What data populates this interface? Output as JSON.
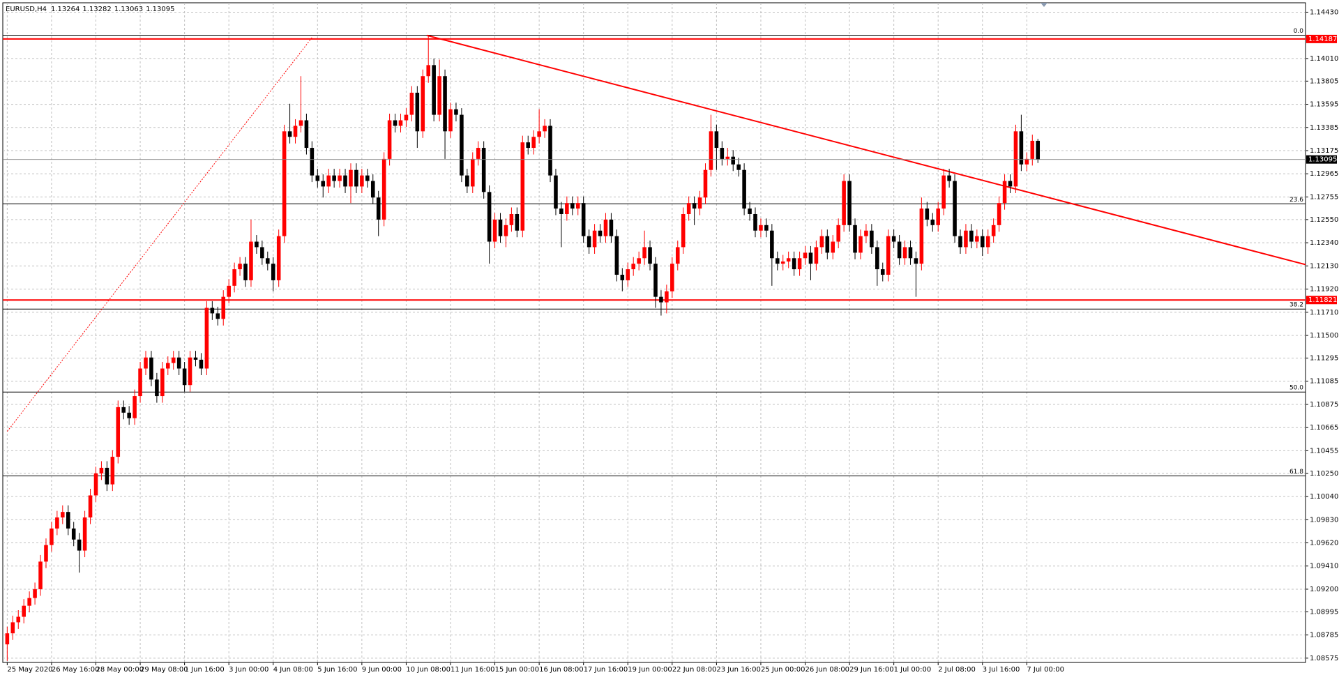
{
  "chart_data": {
    "type": "candlestick",
    "symbol": "EURUSD,H4",
    "up_color": "#ff0000",
    "down_color": "#000000",
    "level_color": "#ff0000",
    "grid": true,
    "ylim": [
      1.08536,
      1.14515
    ],
    "yticks": [
      {
        "value": 1.1443,
        "label": "1.14430"
      },
      {
        "value": 1.1401,
        "label": "1.14010"
      },
      1.13805,
      1.13595,
      1.13385,
      1.13175,
      1.12965,
      1.12755,
      {
        "value": 1.1255,
        "label": "1.12550"
      },
      {
        "value": 1.1234,
        "label": "1.12340"
      },
      {
        "value": 1.1213,
        "label": "1.12130"
      },
      {
        "value": 1.1192,
        "label": "1.11920"
      },
      {
        "value": 1.1171,
        "label": "1.11710"
      },
      {
        "value": 1.115,
        "label": "1.11500"
      },
      1.11295,
      1.11085,
      1.10875,
      1.10665,
      1.10455,
      {
        "value": 1.1025,
        "label": "1.10250"
      },
      {
        "value": 1.1004,
        "label": "1.10040"
      },
      {
        "value": 1.0983,
        "label": "1.09830"
      },
      {
        "value": 1.0962,
        "label": "1.09620"
      },
      {
        "value": 1.0941,
        "label": "1.09410"
      },
      {
        "value": 1.092,
        "label": "1.09200"
      },
      1.08995,
      1.08785,
      1.08575
    ],
    "xticks": [
      {
        "value": 0,
        "label": "25 May 2020"
      },
      {
        "value": 8,
        "label": "26 May 16:00"
      },
      {
        "value": 16,
        "label": "28 May 00:00"
      },
      {
        "value": 24,
        "label": "29 May 08:00"
      },
      {
        "value": 32,
        "label": "1 Jun 16:00"
      },
      {
        "value": 40,
        "label": "3 Jun 00:00"
      },
      {
        "value": 48,
        "label": "4 Jun 08:00"
      },
      {
        "value": 56,
        "label": "5 Jun 16:00"
      },
      {
        "value": 64,
        "label": "9 Jun 00:00"
      },
      {
        "value": 72,
        "label": "10 Jun 08:00"
      },
      {
        "value": 80,
        "label": "11 Jun 16:00"
      },
      {
        "value": 88,
        "label": "15 Jun 00:00"
      },
      {
        "value": 96,
        "label": "16 Jun 08:00"
      },
      {
        "value": 104,
        "label": "17 Jun 16:00"
      },
      {
        "value": 112,
        "label": "19 Jun 00:00"
      },
      {
        "value": 120,
        "label": "22 Jun 08:00"
      },
      {
        "value": 128,
        "label": "23 Jun 16:00"
      },
      {
        "value": 136,
        "label": "25 Jun 00:00"
      },
      {
        "value": 144,
        "label": "26 Jun 08:00"
      },
      {
        "value": 152,
        "label": "29 Jun 16:00"
      },
      {
        "value": 160,
        "label": "1 Jul 00:00"
      },
      {
        "value": 168,
        "label": "2 Jul 08:00"
      },
      {
        "value": 176,
        "label": "3 Jul 16:00"
      },
      {
        "value": 184,
        "label": "7 Jul 00:00"
      }
    ],
    "xlim": [
      -0.8,
      234.3
    ],
    "open": [
      1.087,
      1.088,
      1.089,
      1.0895,
      1.0905,
      1.0912,
      1.092,
      1.0945,
      1.096,
      1.0975,
      1.0985,
      1.099,
      1.0975,
      1.0965,
      1.0955,
      1.0985,
      1.1005,
      1.1025,
      1.103,
      1.1015,
      1.104,
      1.1085,
      1.108,
      1.1075,
      1.1095,
      1.112,
      1.113,
      1.111,
      1.1095,
      1.112,
      1.1125,
      1.113,
      1.112,
      1.1105,
      1.113,
      1.1128,
      1.112,
      1.1175,
      1.117,
      1.1165,
      1.1185,
      1.1195,
      1.121,
      1.1215,
      1.12,
      1.1235,
      1.123,
      1.122,
      1.1215,
      1.12,
      1.124,
      1.1335,
      1.133,
      1.134,
      1.1345,
      1.132,
      1.1295,
      1.129,
      1.1285,
      1.1295,
      1.129,
      1.1295,
      1.1285,
      1.13,
      1.1285,
      1.1295,
      1.129,
      1.1275,
      1.1255,
      1.131,
      1.1345,
      1.134,
      1.1345,
      1.135,
      1.137,
      1.1335,
      1.1385,
      1.1395,
      1.135,
      1.1385,
      1.1335,
      1.1355,
      1.135,
      1.1295,
      1.1285,
      1.131,
      1.132,
      1.128,
      1.1235,
      1.1255,
      1.124,
      1.125,
      1.126,
      1.1245,
      1.1325,
      1.132,
      1.133,
      1.1335,
      1.134,
      1.1295,
      1.1265,
      1.126,
      1.127,
      1.1265,
      1.127,
      1.124,
      1.123,
      1.1245,
      1.124,
      1.1255,
      1.124,
      1.1205,
      1.12,
      1.121,
      1.1215,
      1.122,
      1.123,
      1.1215,
      1.1185,
      1.118,
      1.119,
      1.1215,
      1.123,
      1.126,
      1.127,
      1.1265,
      1.1275,
      1.13,
      1.1335,
      1.132,
      1.131,
      1.1312,
      1.1305,
      1.13,
      1.1265,
      1.126,
      1.1245,
      1.125,
      1.1245,
      1.122,
      1.1215,
      1.1217,
      1.122,
      1.121,
      1.122,
      1.1225,
      1.1215,
      1.123,
      1.124,
      1.1225,
      1.1235,
      1.125,
      1.129,
      1.125,
      1.1225,
      1.124,
      1.1245,
      1.123,
      1.121,
      1.1205,
      1.124,
      1.1235,
      1.122,
      1.123,
      1.122,
      1.1215,
      1.1265,
      1.1255,
      1.125,
      1.1265,
      1.1295,
      1.129,
      1.124,
      1.123,
      1.1245,
      1.1235,
      1.124,
      1.123,
      1.124,
      1.125,
      1.127,
      1.129,
      1.1285,
      1.1335,
      1.1305,
      1.131,
      1.13264
    ],
    "high": [
      1.0886,
      1.0896,
      1.0901,
      1.0911,
      1.0918,
      1.0926,
      1.0951,
      1.0966,
      1.0981,
      1.0991,
      1.0996,
      1.0996,
      1.0981,
      1.0971,
      1.0991,
      1.1011,
      1.1031,
      1.1036,
      1.1036,
      1.1046,
      1.1091,
      1.1091,
      1.1086,
      1.1101,
      1.1126,
      1.1136,
      1.1136,
      1.1116,
      1.1126,
      1.1131,
      1.1136,
      1.1136,
      1.1126,
      1.1136,
      1.1136,
      1.1134,
      1.1181,
      1.1181,
      1.1176,
      1.1191,
      1.1201,
      1.1216,
      1.1221,
      1.1221,
      1.1255,
      1.1241,
      1.1236,
      1.1226,
      1.1221,
      1.1246,
      1.1341,
      1.136,
      1.1346,
      1.1385,
      1.1351,
      1.1326,
      1.1301,
      1.1296,
      1.1301,
      1.1301,
      1.1301,
      1.1301,
      1.1306,
      1.1306,
      1.1301,
      1.1301,
      1.1296,
      1.1281,
      1.1316,
      1.1351,
      1.1351,
      1.1351,
      1.1356,
      1.1376,
      1.1376,
      1.1391,
      1.1422,
      1.1401,
      1.14,
      1.1391,
      1.1361,
      1.1361,
      1.1356,
      1.1301,
      1.1316,
      1.1326,
      1.1326,
      1.1286,
      1.1261,
      1.1261,
      1.1256,
      1.1266,
      1.1266,
      1.1331,
      1.1331,
      1.1336,
      1.1355,
      1.1346,
      1.1346,
      1.1301,
      1.1271,
      1.1276,
      1.1276,
      1.1276,
      1.1276,
      1.1246,
      1.1251,
      1.1251,
      1.1261,
      1.1261,
      1.1246,
      1.1211,
      1.1216,
      1.1221,
      1.1226,
      1.1245,
      1.1236,
      1.1221,
      1.1191,
      1.1196,
      1.1221,
      1.1236,
      1.1266,
      1.1276,
      1.1276,
      1.1281,
      1.1306,
      1.135,
      1.1341,
      1.1326,
      1.132,
      1.1318,
      1.1311,
      1.1306,
      1.1271,
      1.1266,
      1.1256,
      1.1256,
      1.1251,
      1.1226,
      1.1223,
      1.1226,
      1.1226,
      1.1226,
      1.1231,
      1.1231,
      1.1236,
      1.1246,
      1.1246,
      1.1241,
      1.1256,
      1.1296,
      1.1296,
      1.1256,
      1.1246,
      1.1251,
      1.1251,
      1.1236,
      1.1216,
      1.1246,
      1.1246,
      1.1241,
      1.1236,
      1.1236,
      1.1226,
      1.1275,
      1.1271,
      1.1261,
      1.1271,
      1.1301,
      1.1301,
      1.1296,
      1.1246,
      1.1251,
      1.1251,
      1.1246,
      1.1246,
      1.1246,
      1.1256,
      1.1276,
      1.1296,
      1.1296,
      1.1341,
      1.135,
      1.1316,
      1.1332,
      1.13282
    ],
    "low": [
      1.0855,
      1.0874,
      1.0884,
      1.0889,
      1.0899,
      1.0906,
      1.0914,
      1.0939,
      1.0954,
      1.0969,
      1.0979,
      1.0969,
      1.0959,
      1.0935,
      1.0949,
      1.0979,
      1.0999,
      1.1019,
      1.1009,
      1.1009,
      1.1034,
      1.1074,
      1.1069,
      1.1069,
      1.1089,
      1.1114,
      1.1104,
      1.1089,
      1.1089,
      1.1114,
      1.1119,
      1.1114,
      1.1099,
      1.1099,
      1.1122,
      1.1114,
      1.1114,
      1.1164,
      1.1159,
      1.1159,
      1.1179,
      1.1189,
      1.1204,
      1.1194,
      1.1194,
      1.1224,
      1.1214,
      1.1209,
      1.119,
      1.1194,
      1.1234,
      1.1324,
      1.1324,
      1.1334,
      1.1314,
      1.1289,
      1.1284,
      1.1275,
      1.1279,
      1.1284,
      1.1284,
      1.1279,
      1.127,
      1.1279,
      1.1279,
      1.1284,
      1.1269,
      1.124,
      1.1249,
      1.1304,
      1.1334,
      1.1334,
      1.1339,
      1.1344,
      1.132,
      1.1329,
      1.1379,
      1.1344,
      1.1344,
      1.131,
      1.1329,
      1.1344,
      1.1289,
      1.1279,
      1.1279,
      1.1304,
      1.1274,
      1.1215,
      1.1229,
      1.1234,
      1.123,
      1.1244,
      1.1239,
      1.1239,
      1.1314,
      1.1314,
      1.1324,
      1.1329,
      1.1289,
      1.1259,
      1.123,
      1.1254,
      1.1259,
      1.1259,
      1.1234,
      1.1224,
      1.1224,
      1.1234,
      1.1234,
      1.1234,
      1.1199,
      1.119,
      1.1194,
      1.1204,
      1.1209,
      1.1214,
      1.1209,
      1.1175,
      1.1168,
      1.117,
      1.1184,
      1.1209,
      1.1224,
      1.1254,
      1.125,
      1.1259,
      1.1269,
      1.1294,
      1.13,
      1.1304,
      1.1304,
      1.1299,
      1.1294,
      1.1259,
      1.1254,
      1.1239,
      1.1239,
      1.1239,
      1.1195,
      1.1209,
      1.1209,
      1.1211,
      1.1204,
      1.1204,
      1.1214,
      1.12,
      1.1209,
      1.1224,
      1.1219,
      1.1219,
      1.1229,
      1.1244,
      1.1244,
      1.1219,
      1.1219,
      1.1234,
      1.1224,
      1.1195,
      1.1199,
      1.1199,
      1.1229,
      1.1214,
      1.1214,
      1.1214,
      1.1185,
      1.1209,
      1.1249,
      1.1244,
      1.1244,
      1.1259,
      1.1284,
      1.1234,
      1.1224,
      1.1224,
      1.1229,
      1.1229,
      1.1222,
      1.1224,
      1.1234,
      1.1244,
      1.1264,
      1.1279,
      1.1279,
      1.1299,
      1.1299,
      1.1304,
      1.13063
    ],
    "close": [
      1.088,
      1.089,
      1.0895,
      1.0905,
      1.0912,
      1.092,
      1.0945,
      1.096,
      1.0975,
      1.0985,
      1.099,
      1.0975,
      1.0965,
      1.0955,
      1.0985,
      1.1005,
      1.1025,
      1.103,
      1.1015,
      1.104,
      1.1085,
      1.108,
      1.1075,
      1.1095,
      1.112,
      1.113,
      1.111,
      1.1095,
      1.112,
      1.1125,
      1.113,
      1.112,
      1.1105,
      1.113,
      1.1128,
      1.112,
      1.1175,
      1.117,
      1.1165,
      1.1185,
      1.1195,
      1.121,
      1.1215,
      1.12,
      1.1235,
      1.123,
      1.122,
      1.1215,
      1.12,
      1.124,
      1.1335,
      1.133,
      1.134,
      1.1345,
      1.132,
      1.1295,
      1.129,
      1.1285,
      1.1295,
      1.129,
      1.1295,
      1.1285,
      1.13,
      1.1285,
      1.1295,
      1.129,
      1.1275,
      1.1255,
      1.131,
      1.1345,
      1.134,
      1.1345,
      1.135,
      1.137,
      1.1335,
      1.1385,
      1.1395,
      1.135,
      1.1385,
      1.1335,
      1.1355,
      1.135,
      1.1295,
      1.1285,
      1.131,
      1.132,
      1.128,
      1.1235,
      1.1255,
      1.124,
      1.125,
      1.126,
      1.1245,
      1.1325,
      1.132,
      1.133,
      1.1335,
      1.134,
      1.1295,
      1.1265,
      1.126,
      1.127,
      1.1265,
      1.127,
      1.124,
      1.123,
      1.1245,
      1.124,
      1.1255,
      1.124,
      1.1205,
      1.12,
      1.121,
      1.1215,
      1.122,
      1.123,
      1.1215,
      1.1185,
      1.118,
      1.119,
      1.1215,
      1.123,
      1.126,
      1.127,
      1.1265,
      1.1275,
      1.13,
      1.1335,
      1.132,
      1.131,
      1.1312,
      1.1305,
      1.13,
      1.1265,
      1.126,
      1.1245,
      1.125,
      1.1245,
      1.122,
      1.1215,
      1.1217,
      1.122,
      1.121,
      1.122,
      1.1225,
      1.1215,
      1.123,
      1.124,
      1.1225,
      1.1235,
      1.125,
      1.129,
      1.125,
      1.1225,
      1.124,
      1.1245,
      1.123,
      1.121,
      1.1205,
      1.124,
      1.1235,
      1.122,
      1.123,
      1.122,
      1.1215,
      1.1265,
      1.1255,
      1.125,
      1.1265,
      1.1295,
      1.129,
      1.124,
      1.123,
      1.1245,
      1.1235,
      1.124,
      1.123,
      1.124,
      1.125,
      1.127,
      1.129,
      1.1285,
      1.1335,
      1.1305,
      1.131,
      1.13264,
      1.13095
    ],
    "hlines": [
      1.14187,
      1.11821
    ],
    "fib_levels": [
      {
        "ratio": "0.0",
        "price": 1.14221
      },
      {
        "ratio": "23.6",
        "price": 1.12693
      },
      {
        "ratio": "38.2",
        "price": 1.11739
      },
      {
        "ratio": "50.0",
        "price": 1.10987
      },
      {
        "ratio": "61.8",
        "price": 1.10227
      }
    ],
    "fib_line": [
      {
        "x": 0,
        "y": 1.1063
      },
      {
        "x": 55,
        "y": 1.142
      }
    ],
    "trendline": [
      {
        "x": 75.7,
        "y": 1.1422
      },
      {
        "x": 234.3,
        "y": 1.12142
      }
    ]
  }
}
